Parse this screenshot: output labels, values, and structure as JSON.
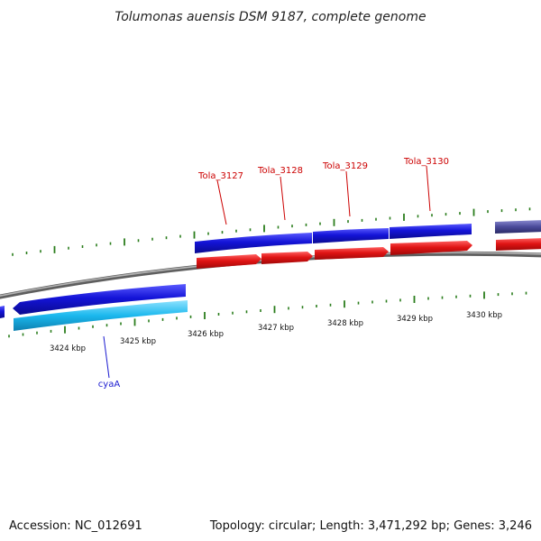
{
  "title": "Tolumonas auensis DSM 9187, complete genome",
  "footer": {
    "accession": "Accession: NC_012691",
    "summary": "Topology: circular; Length: 3,471,292 bp; Genes: 3,246"
  },
  "colors": {
    "background": "#ffffff",
    "backbone": "#8a8a8a",
    "tick": "#2a7d1c",
    "forward_cds": "#1414d8",
    "reverse_cds": "#e01414",
    "cyan_cds": "#1bb8ee",
    "purple_cds": "#4a4a9a",
    "label_red": "#cc0000",
    "label_blue": "#1a1ad0"
  },
  "scale_labels": [
    "3424 kbp",
    "3425 kbp",
    "3426 kbp",
    "3427 kbp",
    "3428 kbp",
    "3429 kbp",
    "3430 kbp"
  ],
  "genes": [
    {
      "name": "Tola_3127",
      "color": "#cc0000"
    },
    {
      "name": "Tola_3128",
      "color": "#cc0000"
    },
    {
      "name": "Tola_3129",
      "color": "#cc0000"
    },
    {
      "name": "Tola_3130",
      "color": "#cc0000"
    },
    {
      "name": "cyaA",
      "color": "#1a1ad0"
    }
  ]
}
